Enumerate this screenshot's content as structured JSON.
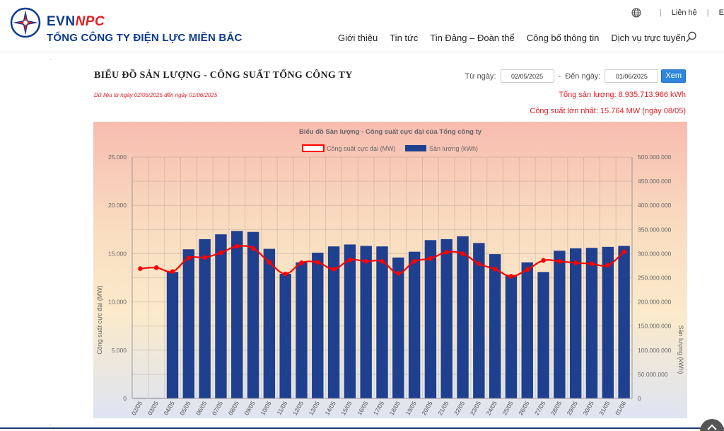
{
  "header": {
    "brand_evn": "EVN",
    "brand_npc": "NPC",
    "company_name": "TỔNG CÔNG TY ĐIỆN LỰC MIỀN BẮC",
    "top_links": [
      "|",
      "Liên hệ",
      "|",
      "E"
    ],
    "nav": [
      "Giới thiệu",
      "Tin tức",
      "Tin Đảng – Đoàn thể",
      "Công bố thông tin",
      "Dịch vụ trực tuyến"
    ],
    "colors": {
      "brand_blue": "#0b3a8f",
      "brand_red": "#e31e24"
    }
  },
  "page": {
    "title": "BIỂU ĐỒ SẢN LƯỢNG - CÔNG SUẤT TỔNG CÔNG TY",
    "range_note": "Dữ liệu từ ngày 02/05/2025 đến ngày 01/06/2025",
    "from_label": "Từ ngày:",
    "from_value": "02/05/2025",
    "to_label": "Đến ngày:",
    "to_value": "01/06/2025",
    "dash": "-",
    "submit_label": "Xem",
    "total_output": "Tổng sản lượng: 8.935.713.966 kWh",
    "max_capacity": "Công suất lớn nhất: 15.764 MW (ngày 08/05)"
  },
  "chart_data": {
    "type": "bar",
    "title": "Biểu đồ Sản lượng - Công suất cực đại của Tổng công ty",
    "categories": [
      "02/05",
      "03/05",
      "04/05",
      "05/05",
      "06/05",
      "07/05",
      "08/05",
      "09/05",
      "10/05",
      "11/05",
      "12/05",
      "13/05",
      "14/05",
      "15/05",
      "16/05",
      "17/05",
      "18/05",
      "19/05",
      "20/05",
      "21/05",
      "22/05",
      "23/05",
      "24/05",
      "25/05",
      "26/05",
      "27/05",
      "28/05",
      "29/05",
      "30/05",
      "31/05",
      "01/06"
    ],
    "series": [
      {
        "name": "Sản lượng (kWh)",
        "type": "bar",
        "axis": "right",
        "color": "#1f3f8f",
        "values": [
          1000000,
          1000000,
          262000000,
          309000000,
          330000000,
          340000000,
          347000000,
          345000000,
          310000000,
          258000000,
          282000000,
          302000000,
          315000000,
          319000000,
          316000000,
          315000000,
          292000000,
          304000000,
          328000000,
          330000000,
          336000000,
          322000000,
          299000000,
          256000000,
          282000000,
          262000000,
          306000000,
          311000000,
          312000000,
          314000000,
          316000000
        ]
      },
      {
        "name": "Công suất cực đại (MW)",
        "type": "line",
        "axis": "left",
        "color": "#ff0000",
        "values": [
          13450,
          13550,
          13150,
          14550,
          14600,
          15100,
          15764,
          15550,
          14100,
          12900,
          14050,
          14100,
          13400,
          14350,
          14200,
          14200,
          12950,
          14200,
          14500,
          15150,
          15000,
          13950,
          13400,
          12650,
          13350,
          14300,
          14200,
          14050,
          13950,
          13800,
          15200
        ]
      }
    ],
    "ylabel_left": "Công suất cực đại (MW)",
    "ylabel_right": "Sản lượng (kWh)",
    "ylim_left": [
      0,
      25000
    ],
    "ylim_right": [
      0,
      500000000
    ],
    "yticks_left": [
      "0",
      "5.000",
      "10.000",
      "15.000",
      "20.000",
      "25.000"
    ],
    "yticks_right": [
      "0",
      "50.000.000",
      "100.000.000",
      "150.000.000",
      "200.000.000",
      "250.000.000",
      "300.000.000",
      "350.000.000",
      "400.000.000",
      "450.000.000",
      "500.000.000"
    ],
    "legend_placement": "top-center",
    "grid": true
  }
}
